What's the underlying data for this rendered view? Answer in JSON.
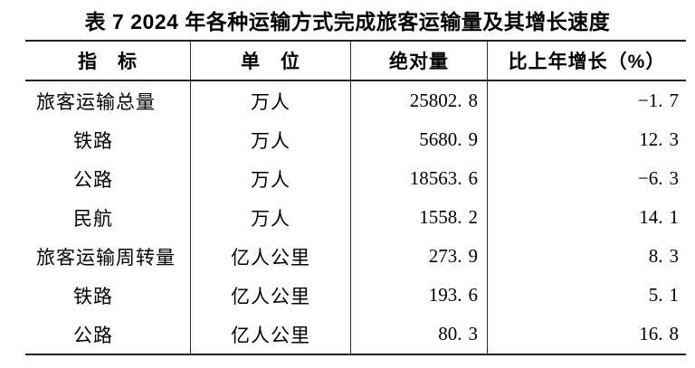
{
  "page": {
    "background": "#ffffff",
    "rule_color": "#222222",
    "text_color": "#000000"
  },
  "title": "表 7 2024 年各种运输方式完成旅客运输量及其增长速度",
  "table": {
    "headers": {
      "indicator": "指　标",
      "unit": "单　位",
      "absolute": "绝对量",
      "growth": "比上年增长（%）"
    },
    "rows": [
      {
        "indicator": "旅客运输总量",
        "unit": "万人",
        "value": "25802.8",
        "growth": "-1.7",
        "level": "parent"
      },
      {
        "indicator": "铁路",
        "unit": "万人",
        "value": "5680.9",
        "growth": "12.3",
        "level": "sub"
      },
      {
        "indicator": "公路",
        "unit": "万人",
        "value": "18563.6",
        "growth": "-6.3",
        "level": "sub"
      },
      {
        "indicator": "民航",
        "unit": "万人",
        "value": "1558.2",
        "growth": "14.1",
        "level": "sub"
      },
      {
        "indicator": "旅客运输周转量",
        "unit": "亿人公里",
        "value": "273.9",
        "growth": "8.3",
        "level": "parent"
      },
      {
        "indicator": "铁路",
        "unit": "亿人公里",
        "value": "193.6",
        "growth": "5.1",
        "level": "sub"
      },
      {
        "indicator": "公路",
        "unit": "亿人公里",
        "value": "80.3",
        "growth": "16.8",
        "level": "sub"
      }
    ]
  },
  "chart_data": {
    "type": "table",
    "title": "表 7 2024 年各种运输方式完成旅客运输量及其增长速度",
    "columns": [
      "指标",
      "单位",
      "绝对量",
      "比上年增长（%）"
    ],
    "rows": [
      [
        "旅客运输总量",
        "万人",
        25802.8,
        -1.7
      ],
      [
        "铁路",
        "万人",
        5680.9,
        12.3
      ],
      [
        "公路",
        "万人",
        18563.6,
        -6.3
      ],
      [
        "民航",
        "万人",
        1558.2,
        14.1
      ],
      [
        "旅客运输周转量",
        "亿人公里",
        273.9,
        8.3
      ],
      [
        "铁路",
        "亿人公里",
        193.6,
        5.1
      ],
      [
        "公路",
        "亿人公里",
        80.3,
        16.8
      ]
    ]
  }
}
